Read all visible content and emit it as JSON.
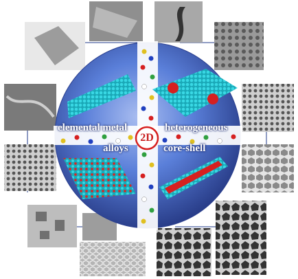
{
  "quadrants": {
    "top_left": "elemental metal",
    "top_right": "heterogeneous",
    "bottom_left": "alloys",
    "bottom_right": "core-shell"
  },
  "center": "2D",
  "colors": {
    "disk": "#4a6fd0",
    "disk_edge": "#2a3f8f",
    "sheet": "#27c2d0",
    "dot": "#d62020",
    "connector": "#1f3a8a"
  }
}
